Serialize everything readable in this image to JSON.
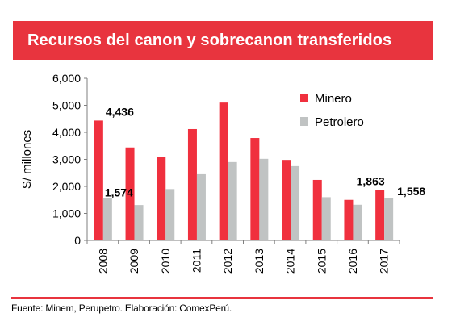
{
  "header": {
    "title": "Recursos del canon y sobrecanon transferidos"
  },
  "footer": {
    "source": "Fuente: Minem, Perupetro. Elaboración: ComexPerú."
  },
  "colors": {
    "minero": "#f0303e",
    "petrolero": "#c0c3c3",
    "accent": "#e8343e"
  },
  "chart_data": {
    "type": "bar",
    "title": "Recursos del canon y sobrecanon transferidos",
    "ylabel": "S/ millones",
    "xlabel": "",
    "ylim": [
      0,
      6000
    ],
    "yticks": [
      0,
      1000,
      2000,
      3000,
      4000,
      5000,
      6000
    ],
    "ytick_labels": [
      "0",
      "1,000",
      "2,000",
      "3,000",
      "4,000",
      "5,000",
      "6,000"
    ],
    "categories": [
      "2008",
      "2009",
      "2010",
      "2011",
      "2012",
      "2013",
      "2014",
      "2015",
      "2016",
      "2017"
    ],
    "series": [
      {
        "name": "Minero",
        "values": [
          4436,
          3440,
          3100,
          4120,
          5100,
          3790,
          2980,
          2240,
          1500,
          1863
        ]
      },
      {
        "name": "Petrolero",
        "values": [
          1574,
          1310,
          1900,
          2450,
          2900,
          3020,
          2750,
          1600,
          1320,
          1558
        ]
      }
    ],
    "data_labels": [
      {
        "series": "Minero",
        "category": "2008",
        "text": "4,436"
      },
      {
        "series": "Petrolero",
        "category": "2008",
        "text": "1,574"
      },
      {
        "series": "Minero",
        "category": "2017",
        "text": "1,863"
      },
      {
        "series": "Petrolero",
        "category": "2017",
        "text": "1,558"
      }
    ],
    "legend": "top-right",
    "grid": false
  }
}
